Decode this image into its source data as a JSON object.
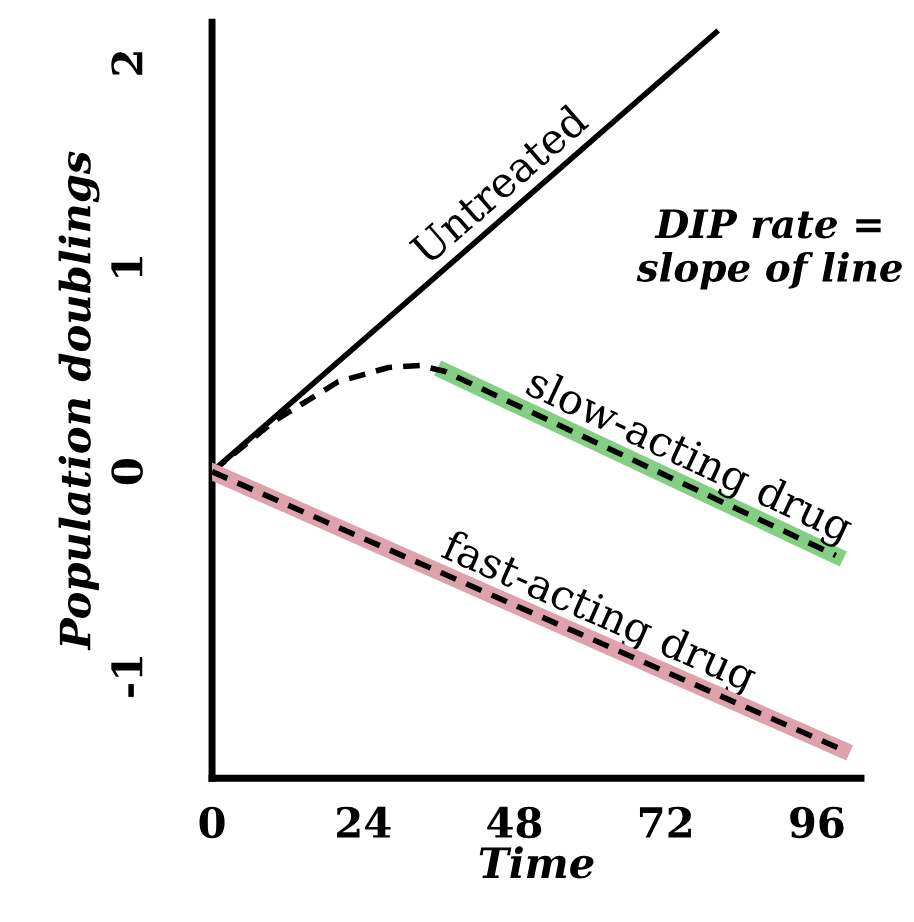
{
  "chart_data": {
    "type": "line",
    "xlabel": "Time",
    "ylabel": "Population doublings",
    "xlim": [
      0,
      103
    ],
    "ylim": [
      -1.5,
      2.2
    ],
    "xticks": [
      0,
      24,
      48,
      72,
      96
    ],
    "yticks": [
      -1,
      0,
      1,
      2
    ],
    "grid": false,
    "legend": false,
    "marker": "none",
    "annotations": [
      "DIP rate =\nslope of line"
    ],
    "series": [
      {
        "name": "Untreated",
        "color": "#000000",
        "x": [
          0,
          80
        ],
        "values": [
          0,
          2.15
        ]
      },
      {
        "name": "slow-acting drug",
        "color": "#84cf84",
        "x": [
          37,
          99
        ],
        "values": [
          0.49,
          -0.41
        ]
      },
      {
        "color": "#000000",
        "line_style": "dashed",
        "x": [
          0,
          10,
          20,
          28,
          33,
          37,
          99
        ],
        "values": [
          0,
          0.25,
          0.44,
          0.51,
          0.52,
          0.49,
          -0.41
        ]
      },
      {
        "name": "fast-acting drug",
        "color": "#dea2ac",
        "x": [
          0,
          100
        ],
        "values": [
          0,
          -1.36
        ]
      },
      {
        "color": "#000000",
        "line_style": "dashed",
        "x": [
          0,
          100
        ],
        "values": [
          0,
          -1.36
        ]
      }
    ]
  }
}
